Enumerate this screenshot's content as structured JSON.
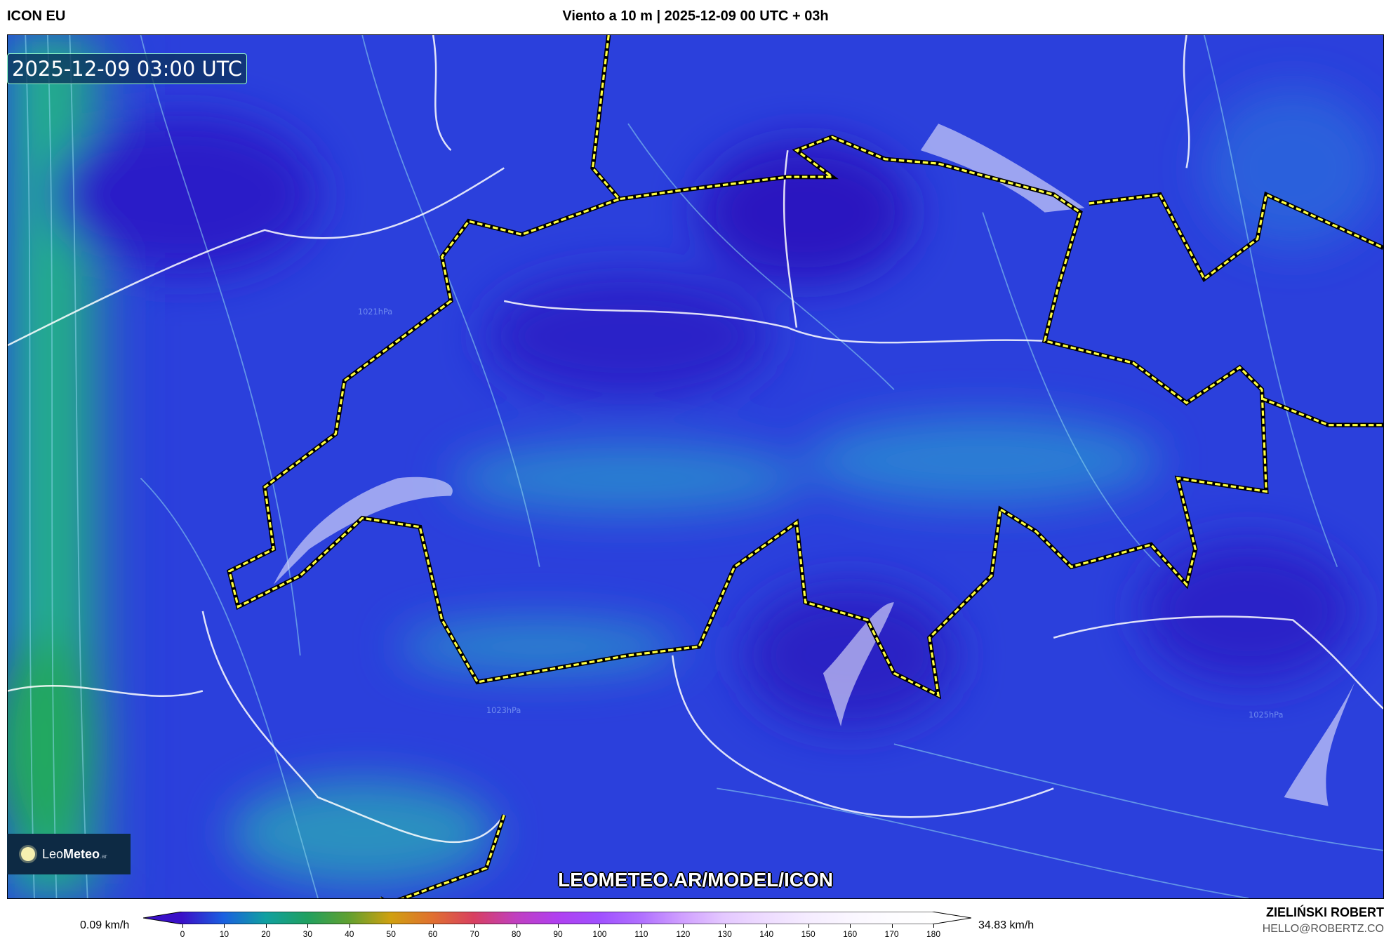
{
  "header": {
    "model": "ICON EU",
    "title": "Viento a 10 m | 2025-12-09 00 UTC + 03h"
  },
  "map": {
    "timestamp": "2025-12-09 03:00 UTC",
    "watermark": "LEOMETEO.AR/MODEL/ICON",
    "logo": {
      "name_light": "Leo",
      "name_bold": "Meteo",
      "suffix": ".ar"
    },
    "pressure_labels": [
      "1021hPa",
      "1023hPa",
      "1025hPa"
    ],
    "colors": {
      "background": "#2b40dc",
      "calm": "#2a1fc8",
      "strong": "#22b080",
      "border": "#ffff40"
    }
  },
  "legend": {
    "min_label": "0.09 km/h",
    "max_label": "34.83 km/h",
    "ticks": [
      "0",
      "10",
      "20",
      "30",
      "40",
      "50",
      "60",
      "70",
      "80",
      "90",
      "100",
      "110",
      "120",
      "130",
      "140",
      "150",
      "160",
      "170",
      "180"
    ],
    "colors": [
      "#3a10c8",
      "#1a60e0",
      "#10a0a0",
      "#20a060",
      "#60a030",
      "#d0a010",
      "#e07030",
      "#d84060",
      "#c040c0",
      "#b040f0",
      "#a050ff",
      "#b070ff",
      "#d0a0ff",
      "#e4c8ff",
      "#eedcff",
      "#f5ecff",
      "#faf6ff",
      "#fdfcff",
      "#ffffff"
    ]
  },
  "credits": {
    "author": "ZIELIŃSKI ROBERT",
    "email": "HELLO@ROBERTZ.CO"
  }
}
